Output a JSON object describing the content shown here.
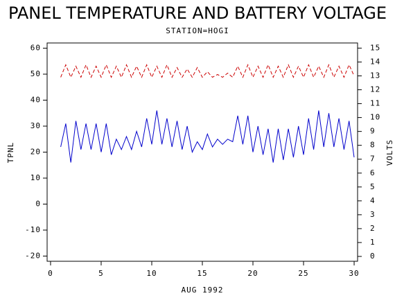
{
  "chart_data": {
    "type": "line",
    "title": "PANEL TEMPERATURE AND BATTERY VOLTAGE",
    "subtitle": "STATION=HOGI",
    "xlabel": "AUG 1992",
    "ylabel": "TPNL",
    "y2label": "VOLTS",
    "x": [
      1,
      1.5,
      2,
      2.5,
      3,
      3.5,
      4,
      4.5,
      5,
      5.5,
      6,
      6.5,
      7,
      7.5,
      8,
      8.5,
      9,
      9.5,
      10,
      10.5,
      11,
      11.5,
      12,
      12.5,
      13,
      13.5,
      14,
      14.5,
      15,
      15.5,
      16,
      16.5,
      17,
      17.5,
      18,
      18.5,
      19,
      19.5,
      20,
      20.5,
      21,
      21.5,
      22,
      22.5,
      23,
      23.5,
      24,
      24.5,
      25,
      25.5,
      26,
      26.5,
      27,
      27.5,
      28,
      28.5,
      29,
      29.5,
      30
    ],
    "series": [
      {
        "name": "TPNL",
        "color": "#0000cc",
        "axis": "y",
        "dash": false,
        "values": [
          22,
          31,
          16,
          32,
          21,
          31,
          21,
          31,
          20,
          31,
          19,
          25,
          21,
          26,
          21,
          28,
          22,
          33,
          23,
          36,
          23,
          33,
          22,
          32,
          21,
          30,
          20,
          24,
          21,
          27,
          22,
          25,
          23,
          25,
          24,
          34,
          23,
          34,
          20,
          30,
          19,
          29,
          16,
          29,
          17,
          29,
          18,
          30,
          19,
          33,
          21,
          36,
          22,
          35,
          22,
          33,
          21,
          32,
          18
        ]
      },
      {
        "name": "VOLTS",
        "color": "#cc0000",
        "axis": "y2",
        "dash": true,
        "values": [
          12.9,
          13.8,
          12.9,
          13.7,
          12.9,
          13.8,
          12.9,
          13.7,
          12.9,
          13.8,
          12.9,
          13.7,
          12.9,
          13.8,
          12.9,
          13.7,
          12.9,
          13.8,
          12.9,
          13.7,
          12.9,
          13.8,
          12.9,
          13.6,
          12.9,
          13.5,
          12.9,
          13.6,
          12.9,
          13.3,
          12.9,
          13.1,
          12.9,
          13.2,
          12.9,
          13.7,
          12.9,
          13.8,
          12.9,
          13.7,
          12.9,
          13.8,
          12.9,
          13.7,
          12.9,
          13.8,
          12.9,
          13.7,
          12.9,
          13.8,
          12.9,
          13.7,
          12.9,
          13.8,
          12.9,
          13.7,
          12.9,
          13.8,
          13.0
        ]
      }
    ],
    "xlim": [
      -0.34,
      30.34
    ],
    "xticks": [
      0,
      5,
      10,
      15,
      20,
      25,
      30
    ],
    "ylim": [
      -22,
      62
    ],
    "yticks": [
      -20,
      -10,
      0,
      10,
      20,
      30,
      40,
      50,
      60
    ],
    "y2lim": [
      -0.35,
      15.37
    ],
    "y2ticks": [
      0,
      1,
      2,
      3,
      4,
      5,
      6,
      7,
      8,
      9,
      10,
      11,
      12,
      13,
      14,
      15
    ]
  }
}
